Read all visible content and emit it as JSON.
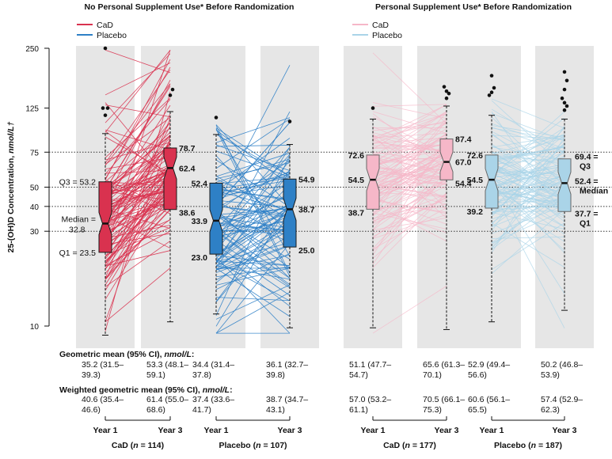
{
  "chart_data": {
    "type": "box",
    "ylabel_prefix": "25-(OH)D Concentration, ",
    "ylabel_unit": "nmol/L†",
    "y_scale": "log",
    "ylim": [
      10,
      250
    ],
    "y_ticks": [
      10,
      30,
      40,
      50,
      75,
      125,
      250
    ],
    "reference_lines": [
      75,
      50,
      40,
      30
    ],
    "colors": {
      "cad_dark": "#d9324f",
      "placebo_dark": "#2e80c6",
      "cad_light": "#f6b7c8",
      "placebo_light": "#aad4e8",
      "band": "#e6e6e6"
    },
    "panels": [
      {
        "title": "No Personal Supplement Use* Before Randomization",
        "legend": [
          "CaD",
          "Placebo"
        ],
        "light": false,
        "groups": [
          {
            "label_prefix": "CaD (",
            "label_n": "n",
            "label_suffix": " = 114)",
            "color_key": "cad_dark",
            "pair_lines": 114,
            "year_labels": [
              "Year 1",
              "Year 3"
            ],
            "boxes": [
              {
                "q1": 23.5,
                "median": 32.8,
                "q3": 53.2,
                "whisker_low": 9.0,
                "whisker_high": 93.0,
                "outliers": [
                  250,
                  125,
                  115,
                  125
                ],
                "labels": {
                  "q3": "Q3 = 53.2",
                  "median_a": "Median =",
                  "median_b": "32.8",
                  "q1": "Q1 = 23.5"
                }
              },
              {
                "q1": 38.6,
                "median": 62.4,
                "q3": 78.7,
                "whisker_low": 10.5,
                "whisker_high": 120.0,
                "outliers": [
                  145,
                  155
                ],
                "labels": {
                  "q3": "78.7",
                  "median": "62.4",
                  "q1": "38.6"
                }
              }
            ],
            "gm_label": "Geometric mean (95% CI), ",
            "gm_unit": "nmol/L",
            "gm_colon": ":",
            "gm": [
              [
                "35.2 (31.5–",
                "39.3)"
              ],
              [
                "53.3 (48.1–",
                "59.1)"
              ]
            ],
            "wgm_label": "Weighted geometric mean (95% CI), ",
            "wgm_unit": "nmol/L",
            "wgm_colon": ":",
            "wgm": [
              [
                "40.6 (35.4–",
                "46.6)"
              ],
              [
                "61.4 (55.0–",
                "68.6)"
              ]
            ]
          },
          {
            "label_prefix": "Placebo (",
            "label_n": "n",
            "label_suffix": " = 107)",
            "color_key": "placebo_dark",
            "pair_lines": 107,
            "year_labels": [
              "Year 1",
              "Year 3"
            ],
            "boxes": [
              {
                "q1": 23.0,
                "median": 33.9,
                "q3": 52.4,
                "whisker_low": 11.5,
                "whisker_high": 92.0,
                "outliers": [
                  112
                ],
                "labels": {
                  "q3": "52.4",
                  "median": "33.9",
                  "q1": "23.0"
                }
              },
              {
                "q1": 25.0,
                "median": 38.7,
                "q3": 54.9,
                "whisker_low": 9.8,
                "whisker_high": 82.0,
                "outliers": [
                  107
                ],
                "labels": {
                  "q3": "54.9",
                  "median": "38.7",
                  "q1": "25.0"
                }
              }
            ],
            "gm": [
              [
                "34.4 (31.4–",
                "37.8)"
              ],
              [
                "36.1 (32.7–",
                "39.8)"
              ]
            ],
            "wgm": [
              [
                "37.4 (33.6–",
                "41.7)"
              ],
              [
                "38.7 (34.7–",
                "43.1)"
              ]
            ]
          }
        ]
      },
      {
        "title": "Personal Supplement Use* Before Randomization",
        "legend": [
          "CaD",
          "Placebo"
        ],
        "light": true,
        "groups": [
          {
            "label_prefix": "CaD (",
            "label_n": "n",
            "label_suffix": " = 177)",
            "color_key": "cad_light",
            "pair_lines": 177,
            "year_labels": [
              "Year 1",
              "Year 3"
            ],
            "boxes": [
              {
                "q1": 38.7,
                "median": 54.5,
                "q3": 72.6,
                "whisker_low": 9.8,
                "whisker_high": 110.0,
                "outliers": [
                  125
                ],
                "labels": {
                  "q3": "72.6",
                  "median": "54.5",
                  "q1": "38.7"
                }
              },
              {
                "q1": 54.4,
                "median": 67.0,
                "q3": 87.4,
                "whisker_low": 9.6,
                "whisker_high": 128.0,
                "outliers": [
                  140,
                  148,
                  152,
                  160
                ],
                "labels": {
                  "q3": "87.4",
                  "median": "67.0",
                  "q1": "54.4"
                }
              }
            ],
            "gm": [
              [
                "51.1 (47.7–",
                "54.7)"
              ],
              [
                "65.6 (61.3–",
                "70.1)"
              ]
            ],
            "wgm": [
              [
                "57.0 (53.2–",
                "61.1)"
              ],
              [
                "70.5 (66.1–",
                "75.3)"
              ]
            ]
          },
          {
            "label_prefix": "Placebo (",
            "label_n": "n",
            "label_suffix": " = 187)",
            "color_key": "placebo_light",
            "pair_lines": 187,
            "year_labels": [
              "Year 1",
              "Year 3"
            ],
            "boxes": [
              {
                "q1": 39.2,
                "median": 54.5,
                "q3": 72.6,
                "whisker_low": 10.5,
                "whisker_high": 115.0,
                "outliers": [
                  182,
                  158,
                  150,
                  145
                ],
                "labels": {
                  "q3": "72.6",
                  "median": "54.5",
                  "q1": "39.2"
                }
              },
              {
                "q1": 37.7,
                "median": 52.4,
                "q3": 69.4,
                "whisker_low": 12.0,
                "whisker_high": 110.0,
                "outliers": [
                  190,
                  172,
                  155,
                  140,
                  133,
                  128,
                  122
                ],
                "labels": {
                  "q3_a": "69.4 =",
                  "q3_b": "Q3",
                  "median_a": "52.4 =",
                  "median_b": "Median",
                  "q1_a": "37.7 =",
                  "q1_b": "Q1"
                }
              }
            ],
            "gm": [
              [
                "52.9 (49.4–",
                "56.6)"
              ],
              [
                "50.2 (46.8–",
                "53.9)"
              ]
            ],
            "wgm": [
              [
                "60.6 (56.1–",
                "65.5)"
              ],
              [
                "57.4 (52.9–",
                "62.3)"
              ]
            ]
          }
        ]
      }
    ]
  }
}
